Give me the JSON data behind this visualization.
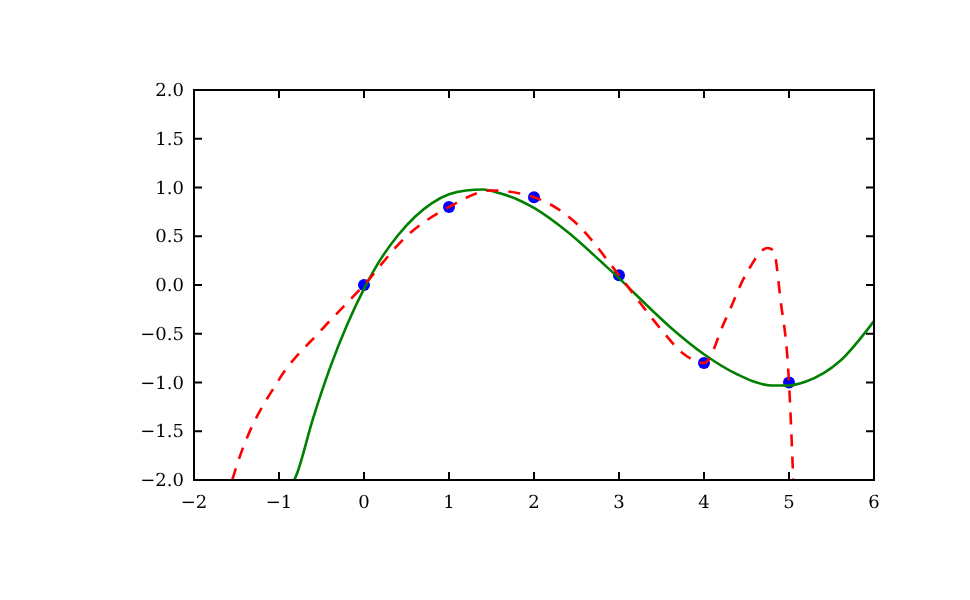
{
  "chart_data": {
    "type": "line",
    "xlim": [
      -2,
      6
    ],
    "ylim": [
      -2,
      2
    ],
    "xticks": [
      {
        "value": -2,
        "label": "−2"
      },
      {
        "value": -1,
        "label": "−1"
      },
      0,
      1,
      2,
      3,
      4,
      5,
      6
    ],
    "yticks": [
      {
        "value": -2,
        "label": "−2.0"
      },
      {
        "value": -1.5,
        "label": "−1.5"
      },
      {
        "value": -1,
        "label": "−1.0"
      },
      {
        "value": -0.5,
        "label": "−0.5"
      },
      {
        "value": 0,
        "label": "0.0"
      },
      {
        "value": 0.5,
        "label": "0.5"
      },
      {
        "value": 1,
        "label": "1.0"
      },
      {
        "value": 1.5,
        "label": "1.5"
      },
      {
        "value": 2,
        "label": "2.0"
      }
    ],
    "series": [
      {
        "type": "scatter",
        "color": "#0000ff",
        "marker": "circle",
        "x": [
          0,
          1,
          2,
          3,
          4,
          5
        ],
        "values": [
          0.0,
          0.8,
          0.9,
          0.1,
          -0.8,
          -1.0
        ]
      },
      {
        "color": "#008000",
        "line_style": "solid",
        "x": [
          -0.82,
          -0.8,
          -0.6,
          -0.4,
          -0.2,
          0,
          0.2,
          0.4,
          0.6,
          0.8,
          1.0,
          1.2,
          1.4,
          1.6,
          1.8,
          2.0,
          2.4,
          2.8,
          3.0,
          3.2,
          3.6,
          4.0,
          4.4,
          4.8,
          5.0,
          5.2,
          5.6,
          6.0
        ],
        "values": [
          -2.0,
          -1.96,
          -1.37,
          -0.85,
          -0.41,
          -0.04,
          0.27,
          0.51,
          0.7,
          0.84,
          0.93,
          0.97,
          0.98,
          0.94,
          0.88,
          0.79,
          0.54,
          0.23,
          0.07,
          -0.1,
          -0.43,
          -0.71,
          -0.92,
          -1.03,
          -1.03,
          -0.99,
          -0.78,
          -0.37
        ]
      },
      {
        "color": "#ff0000",
        "line_style": "dashed",
        "x": [
          -1.55,
          -1.5,
          -1.0,
          -0.5,
          0,
          0.5,
          1.0,
          1.5,
          2.0,
          2.5,
          3.0,
          3.5,
          3.75,
          4.0,
          4.25,
          4.5,
          4.75,
          4.82,
          4.9,
          5.0,
          5.05
        ],
        "values": [
          -2.0,
          -1.86,
          -0.97,
          -0.46,
          0.0,
          0.5,
          0.8,
          0.97,
          0.9,
          0.63,
          0.1,
          -0.46,
          -0.7,
          -0.8,
          -0.36,
          0.12,
          0.38,
          0.35,
          -0.15,
          -1.0,
          -2.0
        ]
      }
    ]
  }
}
